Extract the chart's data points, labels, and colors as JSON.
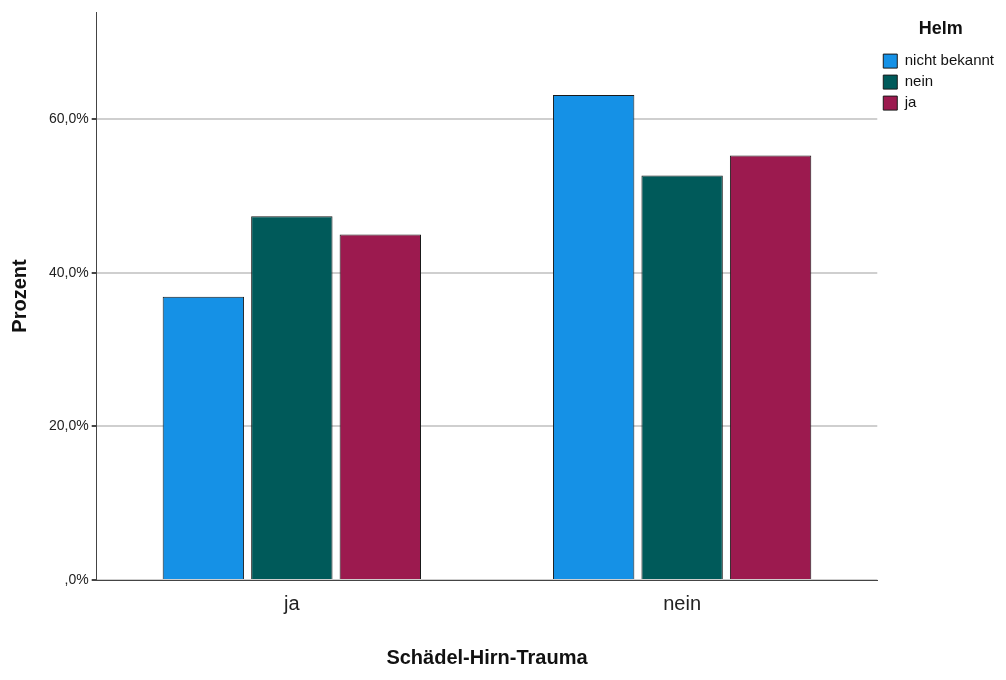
{
  "chart_data": {
    "type": "bar",
    "xlabel": "Schädel-Hirn-Trauma",
    "ylabel": "Prozent",
    "legend_title": "Helm",
    "categories": [
      "ja",
      "nein"
    ],
    "series": [
      {
        "name": "nicht bekannt",
        "color": "#1591e6",
        "values": [
          36.9,
          63.2
        ]
      },
      {
        "name": "nein",
        "color": "#005a5a",
        "values": [
          47.4,
          52.7
        ]
      },
      {
        "name": "ja",
        "color": "#9c1a4f",
        "values": [
          45.0,
          55.3
        ]
      }
    ],
    "ylim": [
      0,
      74
    ],
    "yticks": [
      {
        "value": 0,
        "label": ",0%"
      },
      {
        "value": 20,
        "label": "20,0%"
      },
      {
        "value": 40,
        "label": "40,0%"
      },
      {
        "value": 60,
        "label": "60,0%"
      }
    ],
    "grid": "y",
    "legend": "top right"
  }
}
